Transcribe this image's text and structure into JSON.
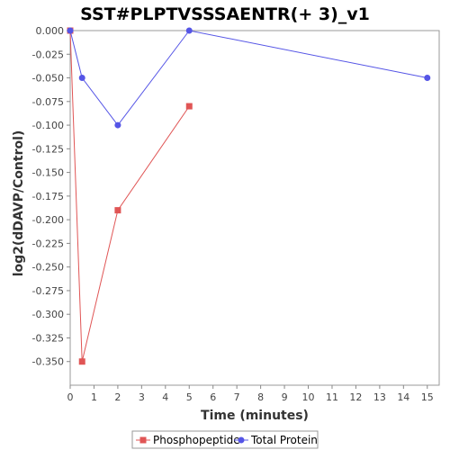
{
  "chart_data": {
    "type": "line",
    "title": "SST#PLPTVSSSAENTR(+ 3)_v1",
    "xlabel": "Time (minutes)",
    "ylabel": "log2(dDAVP/Control)",
    "xlim": [
      0,
      15.5
    ],
    "ylim": [
      -0.375,
      0.0
    ],
    "xticks": [
      0,
      1,
      2,
      3,
      4,
      5,
      6,
      7,
      8,
      9,
      10,
      11,
      12,
      13,
      14,
      15
    ],
    "yticks": [
      0.0,
      -0.025,
      -0.05,
      -0.075,
      -0.1,
      -0.125,
      -0.15,
      -0.175,
      -0.2,
      -0.225,
      -0.25,
      -0.275,
      -0.3,
      -0.325,
      -0.35
    ],
    "ytick_labels": [
      "0.000",
      "-0.025",
      "-0.050",
      "-0.075",
      "-0.100",
      "-0.125",
      "-0.150",
      "-0.175",
      "-0.200",
      "-0.225",
      "-0.250",
      "-0.275",
      "-0.300",
      "-0.325",
      "-0.350"
    ],
    "grid": false,
    "legend_position": "bottom",
    "series": [
      {
        "name": "Phosphopeptide",
        "color": "#e05555",
        "marker": "square",
        "x": [
          0,
          0.5,
          2,
          5
        ],
        "y": [
          0.0,
          -0.35,
          -0.19,
          -0.08
        ]
      },
      {
        "name": "Total Protein",
        "color": "#5555e6",
        "marker": "circle",
        "x": [
          0,
          0.5,
          2,
          5,
          15
        ],
        "y": [
          0.0,
          -0.05,
          -0.1,
          0.0,
          -0.05
        ]
      }
    ]
  }
}
